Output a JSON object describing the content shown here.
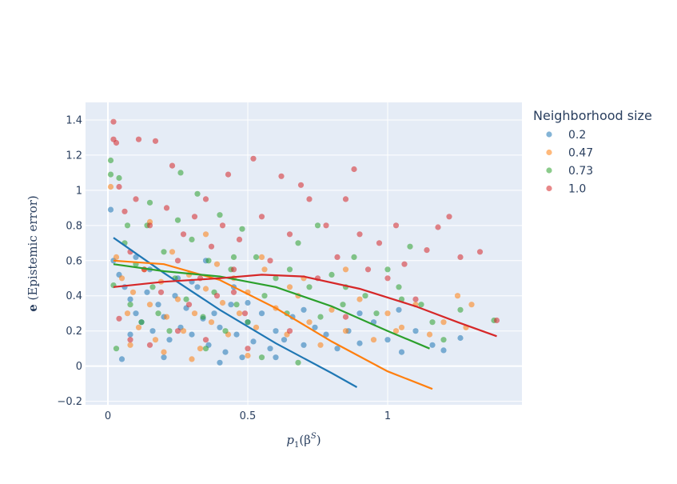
{
  "chart_data": {
    "type": "scatter",
    "xlabel_base": "p",
    "xlabel_sub": "1",
    "xlabel_paren_open": "(β",
    "xlabel_sup": "S",
    "xlabel_paren_close": ")",
    "ylabel_bold": "e",
    "ylabel_rest": " (Epistemic error)",
    "xlim": [
      -0.08,
      1.48
    ],
    "ylim": [
      -0.22,
      1.5
    ],
    "x_ticks": [
      0,
      0.5,
      1
    ],
    "x_tick_labels": [
      "0",
      "0.5",
      "1"
    ],
    "y_ticks": [
      -0.2,
      0,
      0.2,
      0.4,
      0.6,
      0.8,
      1,
      1.2,
      1.4
    ],
    "y_tick_labels": [
      "−0.2",
      "0",
      "0.2",
      "0.4",
      "0.6",
      "0.8",
      "1",
      "1.2",
      "1.4"
    ],
    "zero_lines": true,
    "grid": true,
    "legend": {
      "title": "Neighborhood size",
      "placement": "right",
      "entries": [
        "0.2",
        "0.47",
        "0.73",
        "1.0"
      ]
    },
    "series": [
      {
        "name": "0.2",
        "color": "#1f77b4",
        "trend": [
          [
            0.02,
            0.73
          ],
          [
            0.2,
            0.53
          ],
          [
            0.4,
            0.32
          ],
          [
            0.6,
            0.13
          ],
          [
            0.8,
            -0.04
          ],
          [
            0.89,
            -0.12
          ]
        ],
        "points": [
          [
            0.01,
            0.89
          ],
          [
            0.02,
            0.6
          ],
          [
            0.04,
            0.52
          ],
          [
            0.06,
            0.45
          ],
          [
            0.08,
            0.38
          ],
          [
            0.1,
            0.3
          ],
          [
            0.12,
            0.25
          ],
          [
            0.14,
            0.42
          ],
          [
            0.16,
            0.2
          ],
          [
            0.18,
            0.35
          ],
          [
            0.2,
            0.28
          ],
          [
            0.22,
            0.15
          ],
          [
            0.24,
            0.4
          ],
          [
            0.26,
            0.22
          ],
          [
            0.28,
            0.33
          ],
          [
            0.3,
            0.18
          ],
          [
            0.32,
            0.45
          ],
          [
            0.34,
            0.27
          ],
          [
            0.36,
            0.12
          ],
          [
            0.38,
            0.3
          ],
          [
            0.4,
            0.22
          ],
          [
            0.42,
            0.08
          ],
          [
            0.44,
            0.35
          ],
          [
            0.46,
            0.18
          ],
          [
            0.48,
            0.05
          ],
          [
            0.5,
            0.25
          ],
          [
            0.52,
            0.14
          ],
          [
            0.55,
            0.3
          ],
          [
            0.58,
            0.1
          ],
          [
            0.6,
            0.2
          ],
          [
            0.63,
            0.15
          ],
          [
            0.66,
            0.28
          ],
          [
            0.7,
            0.12
          ],
          [
            0.74,
            0.22
          ],
          [
            0.78,
            0.18
          ],
          [
            0.82,
            0.1
          ],
          [
            0.86,
            0.2
          ],
          [
            0.9,
            0.13
          ],
          [
            0.95,
            0.25
          ],
          [
            1.0,
            0.15
          ],
          [
            1.05,
            0.08
          ],
          [
            1.1,
            0.2
          ],
          [
            1.16,
            0.12
          ],
          [
            1.2,
            0.09
          ],
          [
            1.26,
            0.16
          ],
          [
            0.15,
            0.55
          ],
          [
            0.25,
            0.5
          ],
          [
            0.35,
            0.6
          ],
          [
            0.45,
            0.45
          ],
          [
            0.05,
            0.04
          ],
          [
            0.2,
            0.05
          ],
          [
            0.4,
            0.02
          ],
          [
            0.6,
            0.05
          ],
          [
            0.1,
            0.62
          ],
          [
            0.3,
            0.48
          ],
          [
            0.5,
            0.36
          ],
          [
            0.7,
            0.32
          ],
          [
            0.9,
            0.3
          ],
          [
            1.04,
            0.32
          ],
          [
            0.08,
            0.18
          ]
        ]
      },
      {
        "name": "0.47",
        "color": "#ff7f0e",
        "trend": [
          [
            0.02,
            0.6
          ],
          [
            0.2,
            0.58
          ],
          [
            0.4,
            0.49
          ],
          [
            0.6,
            0.33
          ],
          [
            0.8,
            0.14
          ],
          [
            1.0,
            -0.03
          ],
          [
            1.16,
            -0.13
          ]
        ],
        "points": [
          [
            0.01,
            1.02
          ],
          [
            0.03,
            0.62
          ],
          [
            0.05,
            0.5
          ],
          [
            0.07,
            0.3
          ],
          [
            0.09,
            0.42
          ],
          [
            0.11,
            0.22
          ],
          [
            0.13,
            0.55
          ],
          [
            0.15,
            0.35
          ],
          [
            0.17,
            0.15
          ],
          [
            0.19,
            0.48
          ],
          [
            0.21,
            0.28
          ],
          [
            0.23,
            0.65
          ],
          [
            0.25,
            0.38
          ],
          [
            0.27,
            0.2
          ],
          [
            0.29,
            0.52
          ],
          [
            0.31,
            0.3
          ],
          [
            0.33,
            0.1
          ],
          [
            0.35,
            0.44
          ],
          [
            0.37,
            0.25
          ],
          [
            0.39,
            0.58
          ],
          [
            0.41,
            0.36
          ],
          [
            0.43,
            0.18
          ],
          [
            0.45,
            0.5
          ],
          [
            0.47,
            0.3
          ],
          [
            0.5,
            0.42
          ],
          [
            0.53,
            0.22
          ],
          [
            0.56,
            0.55
          ],
          [
            0.6,
            0.33
          ],
          [
            0.64,
            0.18
          ],
          [
            0.68,
            0.4
          ],
          [
            0.72,
            0.25
          ],
          [
            0.76,
            0.12
          ],
          [
            0.8,
            0.32
          ],
          [
            0.85,
            0.2
          ],
          [
            0.9,
            0.38
          ],
          [
            0.95,
            0.15
          ],
          [
            1.0,
            0.3
          ],
          [
            1.05,
            0.22
          ],
          [
            1.1,
            0.35
          ],
          [
            1.15,
            0.18
          ],
          [
            1.2,
            0.25
          ],
          [
            1.25,
            0.4
          ],
          [
            1.3,
            0.35
          ],
          [
            1.28,
            0.22
          ],
          [
            0.2,
            0.08
          ],
          [
            0.3,
            0.04
          ],
          [
            0.5,
            0.06
          ],
          [
            0.7,
            0.5
          ],
          [
            0.55,
            0.62
          ],
          [
            0.15,
            0.82
          ],
          [
            0.35,
            0.75
          ],
          [
            0.65,
            0.45
          ],
          [
            0.85,
            0.55
          ],
          [
            1.03,
            0.2
          ],
          [
            0.08,
            0.12
          ]
        ]
      },
      {
        "name": "0.73",
        "color": "#2ca02c",
        "trend": [
          [
            0.02,
            0.58
          ],
          [
            0.2,
            0.54
          ],
          [
            0.4,
            0.51
          ],
          [
            0.6,
            0.45
          ],
          [
            0.8,
            0.34
          ],
          [
            1.0,
            0.2
          ],
          [
            1.15,
            0.1
          ]
        ],
        "points": [
          [
            0.01,
            1.17
          ],
          [
            0.01,
            1.09
          ],
          [
            0.02,
            0.46
          ],
          [
            0.04,
            1.07
          ],
          [
            0.06,
            0.7
          ],
          [
            0.08,
            0.35
          ],
          [
            0.1,
            0.58
          ],
          [
            0.12,
            0.25
          ],
          [
            0.14,
            0.8
          ],
          [
            0.16,
            0.45
          ],
          [
            0.18,
            0.3
          ],
          [
            0.2,
            0.65
          ],
          [
            0.22,
            0.2
          ],
          [
            0.24,
            0.5
          ],
          [
            0.26,
            1.1
          ],
          [
            0.28,
            0.38
          ],
          [
            0.3,
            0.72
          ],
          [
            0.32,
            0.98
          ],
          [
            0.34,
            0.28
          ],
          [
            0.36,
            0.6
          ],
          [
            0.38,
            0.42
          ],
          [
            0.4,
            0.86
          ],
          [
            0.42,
            0.2
          ],
          [
            0.44,
            0.55
          ],
          [
            0.46,
            0.35
          ],
          [
            0.48,
            0.78
          ],
          [
            0.5,
            0.25
          ],
          [
            0.53,
            0.62
          ],
          [
            0.56,
            0.4
          ],
          [
            0.6,
            0.5
          ],
          [
            0.64,
            0.3
          ],
          [
            0.68,
            0.7
          ],
          [
            0.72,
            0.45
          ],
          [
            0.76,
            0.28
          ],
          [
            0.8,
            0.52
          ],
          [
            0.84,
            0.35
          ],
          [
            0.88,
            0.62
          ],
          [
            0.92,
            0.4
          ],
          [
            0.96,
            0.3
          ],
          [
            1.0,
            0.55
          ],
          [
            1.04,
            0.45
          ],
          [
            1.08,
            0.68
          ],
          [
            1.12,
            0.35
          ],
          [
            1.16,
            0.25
          ],
          [
            1.2,
            0.15
          ],
          [
            1.26,
            0.32
          ],
          [
            1.38,
            0.26
          ],
          [
            0.55,
            0.05
          ],
          [
            0.35,
            0.1
          ],
          [
            0.68,
            0.02
          ],
          [
            0.03,
            0.1
          ],
          [
            0.07,
            0.8
          ],
          [
            0.15,
            0.93
          ],
          [
            0.25,
            0.83
          ],
          [
            0.45,
            0.62
          ],
          [
            0.65,
            0.55
          ],
          [
            0.85,
            0.45
          ],
          [
            1.05,
            0.38
          ],
          [
            0.75,
            0.8
          ]
        ]
      },
      {
        "name": "1.0",
        "color": "#d62728",
        "trend": [
          [
            0.02,
            0.45
          ],
          [
            0.2,
            0.48
          ],
          [
            0.4,
            0.5
          ],
          [
            0.55,
            0.52
          ],
          [
            0.7,
            0.51
          ],
          [
            0.9,
            0.44
          ],
          [
            1.1,
            0.34
          ],
          [
            1.25,
            0.25
          ],
          [
            1.39,
            0.17
          ]
        ],
        "points": [
          [
            0.02,
            1.39
          ],
          [
            0.02,
            1.29
          ],
          [
            0.03,
            1.27
          ],
          [
            0.04,
            1.02
          ],
          [
            0.06,
            0.88
          ],
          [
            0.08,
            0.65
          ],
          [
            0.1,
            0.95
          ],
          [
            0.11,
            1.29
          ],
          [
            0.13,
            0.55
          ],
          [
            0.15,
            0.8
          ],
          [
            0.17,
            1.28
          ],
          [
            0.19,
            0.42
          ],
          [
            0.21,
            0.9
          ],
          [
            0.23,
            1.14
          ],
          [
            0.25,
            0.6
          ],
          [
            0.27,
            0.75
          ],
          [
            0.29,
            0.35
          ],
          [
            0.31,
            0.85
          ],
          [
            0.33,
            0.5
          ],
          [
            0.35,
            0.95
          ],
          [
            0.37,
            0.68
          ],
          [
            0.39,
            0.4
          ],
          [
            0.41,
            0.8
          ],
          [
            0.43,
            1.09
          ],
          [
            0.45,
            0.55
          ],
          [
            0.47,
            0.72
          ],
          [
            0.49,
            0.3
          ],
          [
            0.52,
            1.18
          ],
          [
            0.55,
            0.85
          ],
          [
            0.58,
            0.6
          ],
          [
            0.62,
            1.08
          ],
          [
            0.65,
            0.75
          ],
          [
            0.69,
            1.03
          ],
          [
            0.72,
            0.95
          ],
          [
            0.75,
            0.5
          ],
          [
            0.78,
            0.8
          ],
          [
            0.82,
            0.62
          ],
          [
            0.85,
            0.95
          ],
          [
            0.88,
            1.12
          ],
          [
            0.9,
            0.75
          ],
          [
            0.93,
            0.55
          ],
          [
            0.97,
            0.7
          ],
          [
            1.0,
            0.5
          ],
          [
            1.03,
            0.8
          ],
          [
            1.06,
            0.58
          ],
          [
            1.1,
            0.38
          ],
          [
            1.14,
            0.66
          ],
          [
            1.18,
            0.79
          ],
          [
            1.22,
            0.85
          ],
          [
            1.26,
            0.62
          ],
          [
            1.33,
            0.65
          ],
          [
            1.39,
            0.26
          ],
          [
            0.15,
            0.12
          ],
          [
            0.25,
            0.2
          ],
          [
            0.35,
            0.15
          ],
          [
            0.5,
            0.1
          ],
          [
            0.65,
            0.2
          ],
          [
            0.85,
            0.28
          ],
          [
            0.45,
            0.42
          ],
          [
            0.04,
            0.27
          ],
          [
            0.08,
            0.15
          ]
        ]
      }
    ]
  }
}
